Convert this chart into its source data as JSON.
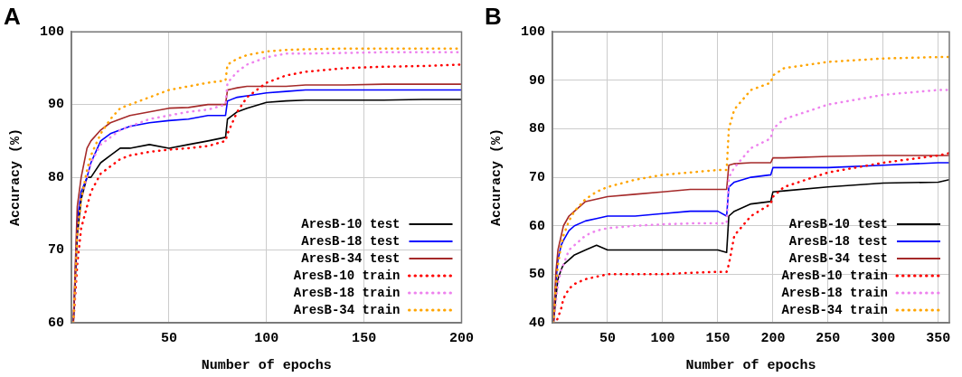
{
  "chart_data": [
    {
      "type": "line",
      "title": "A",
      "xlabel": "Number of epochs",
      "ylabel": "Accuracy (%)",
      "xlim": [
        0,
        200
      ],
      "xticks": [
        50,
        100,
        150,
        200
      ],
      "ylim": [
        60,
        100
      ],
      "yticks": [
        60,
        70,
        80,
        90,
        100
      ],
      "grid": true,
      "legend": "bottom right",
      "marker": "none",
      "x": [
        1,
        3,
        5,
        8,
        10,
        15,
        20,
        25,
        30,
        40,
        50,
        60,
        70,
        79,
        80,
        85,
        90,
        100,
        110,
        120,
        140,
        160,
        180,
        200
      ],
      "series": [
        {
          "name": "AresB-10 test",
          "color": "#000000",
          "line_style": "solid",
          "values": [
            60,
            72,
            77,
            80,
            80,
            82,
            83,
            84,
            84,
            84.5,
            84,
            84.5,
            85,
            85.5,
            88,
            89,
            89.5,
            90.3,
            90.5,
            90.6,
            90.6,
            90.6,
            90.7,
            90.7
          ]
        },
        {
          "name": "AresB-18 test",
          "color": "#0000ff",
          "line_style": "solid",
          "values": [
            60,
            74,
            78,
            80,
            82,
            85,
            86,
            86.5,
            87,
            87.5,
            87.8,
            88,
            88.5,
            88.5,
            90.5,
            91,
            91.2,
            91.6,
            91.8,
            92,
            92,
            92,
            92,
            92
          ]
        },
        {
          "name": "AresB-34 test",
          "color": "#a52a2a",
          "line_style": "solid",
          "values": [
            60,
            76,
            80,
            84,
            85,
            86.5,
            87.5,
            88,
            88.5,
            89,
            89.5,
            89.6,
            90,
            90,
            92,
            92.3,
            92.5,
            92.5,
            92.5,
            92.7,
            92.7,
            92.8,
            92.8,
            92.8
          ]
        },
        {
          "name": "AresB-10 train",
          "color": "#ff0000",
          "line_style": "dotted",
          "values": [
            60,
            68,
            73,
            76,
            78,
            80.5,
            81.5,
            82.5,
            83,
            83.5,
            83.8,
            84,
            84.3,
            85,
            86,
            89,
            91,
            93,
            94,
            94.5,
            95,
            95.2,
            95.3,
            95.5
          ]
        },
        {
          "name": "AresB-18 train",
          "color": "#ee82ee",
          "line_style": "dotted",
          "values": [
            60,
            72,
            77,
            80,
            82,
            84.5,
            85.5,
            86.5,
            87,
            88,
            88.5,
            89,
            89.3,
            90,
            93,
            94.5,
            95.5,
            96.5,
            97,
            97,
            97.1,
            97.2,
            97.2,
            97.2
          ]
        },
        {
          "name": "AresB-34 train",
          "color": "#ffa500",
          "line_style": "dotted",
          "values": [
            60,
            72,
            77,
            81,
            83,
            86,
            88,
            89.5,
            90,
            91,
            92,
            92.5,
            93,
            93.3,
            95.5,
            96.3,
            96.8,
            97.3,
            97.5,
            97.6,
            97.7,
            97.7,
            97.7,
            97.7
          ]
        }
      ]
    },
    {
      "type": "line",
      "title": "B",
      "xlabel": "Number of epochs",
      "ylabel": "Accuracy (%)",
      "xlim": [
        0,
        360
      ],
      "xticks": [
        50,
        100,
        150,
        200,
        250,
        300,
        350
      ],
      "ylim": [
        40,
        100
      ],
      "yticks": [
        40,
        50,
        60,
        70,
        80,
        90,
        100
      ],
      "grid": true,
      "legend": "bottom right",
      "marker": "none",
      "x": [
        1,
        3,
        5,
        8,
        10,
        15,
        20,
        30,
        40,
        50,
        75,
        100,
        125,
        150,
        158,
        160,
        165,
        180,
        198,
        200,
        210,
        250,
        300,
        350,
        360
      ],
      "series": [
        {
          "name": "AresB-10 test",
          "color": "#000000",
          "line_style": "solid",
          "values": [
            40,
            45,
            49,
            51,
            52,
            53,
            54,
            55,
            56,
            55,
            55,
            55,
            55,
            55,
            54.5,
            62,
            63,
            64.5,
            65,
            67,
            67.2,
            68,
            68.8,
            69,
            69.5
          ]
        },
        {
          "name": "AresB-18 test",
          "color": "#0000ff",
          "line_style": "solid",
          "values": [
            40,
            48,
            53,
            56,
            57,
            59,
            60,
            61,
            61.5,
            62,
            62,
            62.5,
            63,
            63,
            62,
            68,
            69,
            70,
            70.5,
            72,
            72,
            72,
            72.5,
            73,
            73
          ]
        },
        {
          "name": "AresB-34 test",
          "color": "#a52a2a",
          "line_style": "solid",
          "values": [
            40,
            50,
            55,
            58,
            60,
            62,
            63,
            65,
            65.5,
            66,
            66.5,
            67,
            67.5,
            67.5,
            67.5,
            72.5,
            72.8,
            73,
            73,
            74,
            74,
            74.3,
            74.5,
            74.5,
            74.5
          ]
        },
        {
          "name": "AresB-10 train",
          "color": "#ff0000",
          "line_style": "dotted",
          "values": [
            40,
            40,
            41,
            43,
            45,
            47,
            48,
            49,
            49.5,
            50,
            50,
            50,
            50.3,
            50.5,
            50.5,
            52,
            58,
            62,
            64.5,
            66,
            68,
            71,
            73,
            74.5,
            75
          ]
        },
        {
          "name": "AresB-18 train",
          "color": "#ee82ee",
          "line_style": "dotted",
          "values": [
            40,
            44,
            48,
            51,
            52,
            55,
            56,
            58,
            59,
            59.5,
            60,
            60.3,
            60.5,
            60.5,
            60.5,
            70,
            72,
            76,
            78,
            80,
            82,
            85,
            87,
            88,
            88
          ]
        },
        {
          "name": "AresB-34 train",
          "color": "#ffa500",
          "line_style": "dotted",
          "values": [
            40,
            47,
            52,
            56,
            58,
            61,
            63,
            65.5,
            67,
            68,
            69.5,
            70.5,
            71,
            71.5,
            71.5,
            80,
            84,
            88,
            89.5,
            91,
            92.5,
            93.8,
            94.5,
            94.8,
            94.8
          ]
        }
      ]
    }
  ]
}
